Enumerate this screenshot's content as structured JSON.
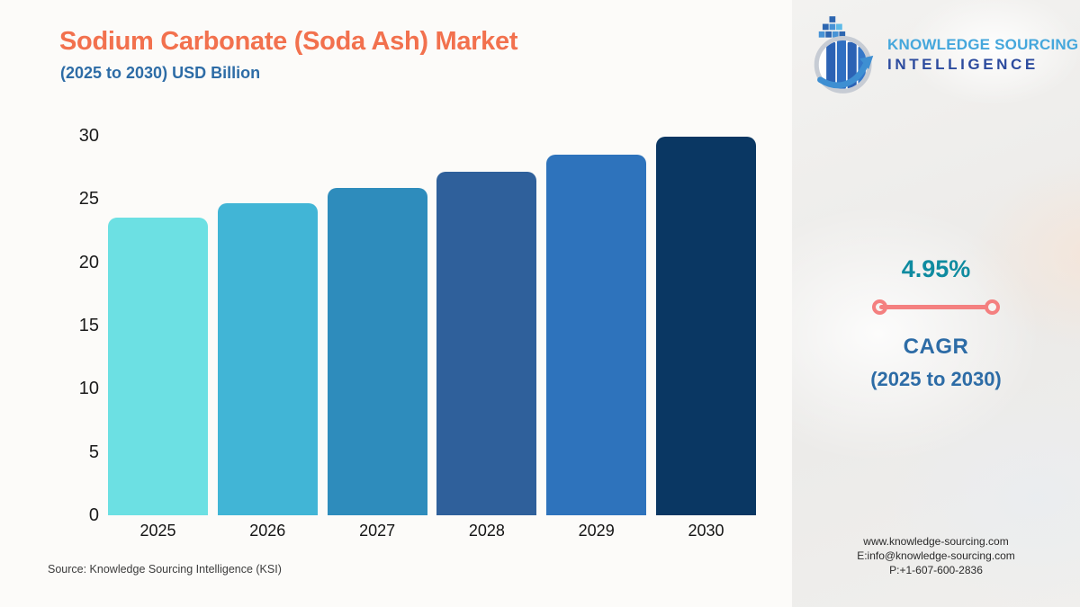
{
  "header": {
    "title": "Sodium Carbonate (Soda Ash) Market",
    "subtitle": "(2025 to 2030) USD Billion"
  },
  "logo": {
    "line1": "KNOWLEDGE SOURCING",
    "line2": "INTELLIGENCE"
  },
  "chart_data": {
    "type": "bar",
    "title": "Sodium Carbonate (Soda Ash) Market (2025 to 2030) USD Billion",
    "categories": [
      "2025",
      "2026",
      "2027",
      "2028",
      "2029",
      "2030"
    ],
    "values": [
      23.52,
      24.69,
      25.91,
      27.19,
      28.54,
      29.95
    ],
    "bar_colors": [
      "#6CE0E3",
      "#41B5D6",
      "#2E8CBC",
      "#2F609B",
      "#2E73BC",
      "#0A3763"
    ],
    "xlabel": "",
    "ylabel": "",
    "ylim": [
      0,
      30
    ],
    "yticks": [
      0,
      5,
      10,
      15,
      20,
      25,
      30
    ],
    "grid": false,
    "legend": "none"
  },
  "cagr": {
    "value": "4.95%",
    "label": "CAGR",
    "period": "(2025 to 2030)"
  },
  "contact": {
    "website": "www.knowledge-sourcing.com",
    "email": "E:info@knowledge-sourcing.com",
    "phone": "P:+1-607-600-2836"
  },
  "source": "Source: Knowledge Sourcing Intelligence (KSI)",
  "colors": {
    "title_orange": "#F2714E",
    "accent_blue": "#2D6CA6",
    "cagr_teal": "#0F8BA0",
    "cagr_line_coral": "#F48080",
    "logo_light_blue": "#45A7DC",
    "logo_dark_blue": "#2C4B9E",
    "background": "#FCFBF9"
  }
}
